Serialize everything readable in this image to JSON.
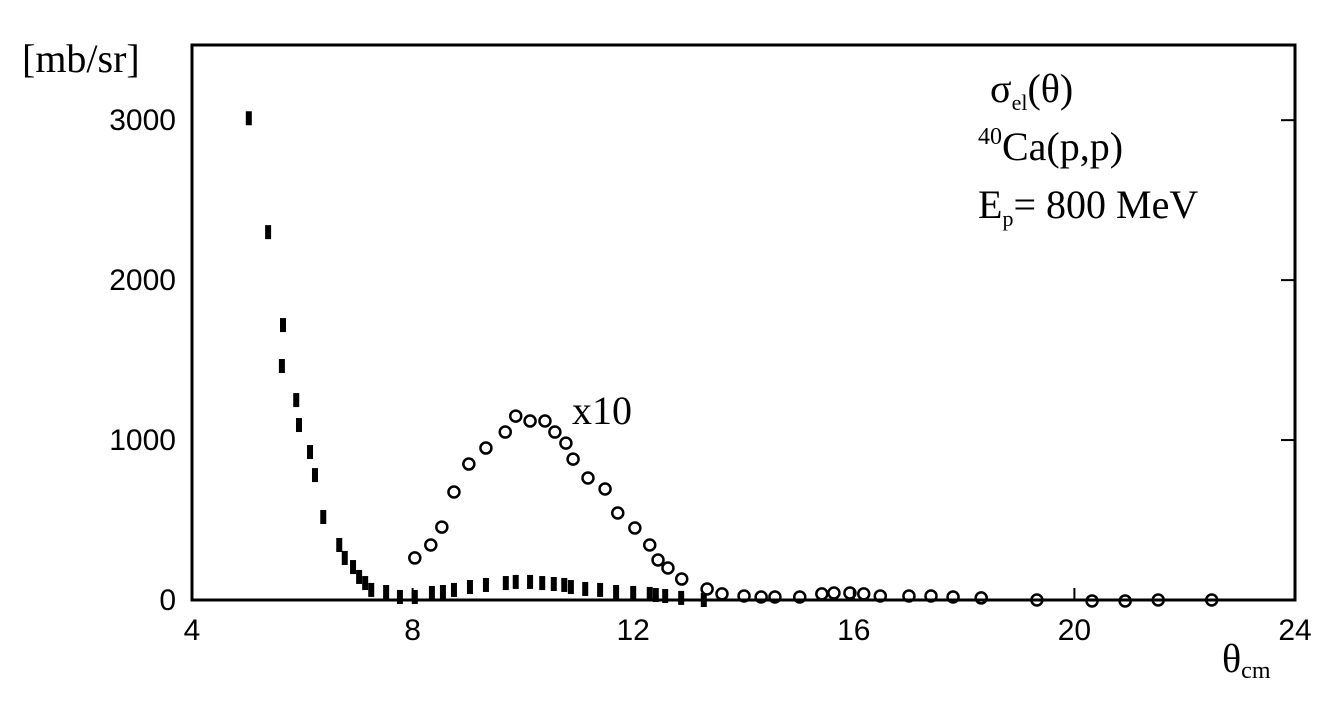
{
  "chart_data": {
    "type": "scatter",
    "y_label": "[mb/sr]",
    "x_label": {
      "main": "θ",
      "sub": "cm"
    },
    "annotations": [
      {
        "parts": [
          {
            "text": "σ",
            "style": "normal"
          },
          {
            "text": "el",
            "style": "sub"
          },
          {
            "text": "(θ)",
            "style": "normal"
          }
        ]
      },
      {
        "parts": [
          {
            "text": "40",
            "style": "sup"
          },
          {
            "text": "Ca(p,p)",
            "style": "normal"
          }
        ]
      },
      {
        "parts": [
          {
            "text": "E",
            "style": "normal"
          },
          {
            "text": "p",
            "style": "sub"
          },
          {
            "text": "= 800 MeV",
            "style": "normal"
          }
        ]
      },
      {
        "parts": [
          {
            "text": "x10",
            "style": "normal"
          }
        ]
      }
    ],
    "xlim": [
      4,
      24
    ],
    "xticks": [
      4,
      8,
      12,
      16,
      20,
      24
    ],
    "ylim": [
      0,
      3470
    ],
    "yticks": [
      0,
      1000,
      2000,
      3000
    ],
    "series": [
      {
        "color": "#000000",
        "marker": "bar",
        "x": [
          5.03,
          5.38,
          5.65,
          5.63,
          5.89,
          5.94,
          6.14,
          6.23,
          6.38,
          6.67,
          6.77,
          6.92,
          7.03,
          7.14,
          7.25,
          7.52,
          7.77,
          8.04,
          8.35,
          8.55,
          8.75,
          9.04,
          9.33,
          9.69,
          9.87,
          10.13,
          10.35,
          10.56,
          10.75,
          10.87,
          11.13,
          11.4,
          11.69,
          12.0,
          12.3,
          12.41,
          12.58,
          12.87,
          13.28
        ],
        "values": [
          3012,
          2300,
          1719,
          1463,
          1250,
          1094,
          925,
          781,
          519,
          344,
          263,
          206,
          144,
          106,
          63,
          50,
          19,
          19,
          44,
          50,
          63,
          81,
          94,
          106,
          113,
          113,
          106,
          100,
          94,
          81,
          69,
          63,
          50,
          44,
          38,
          31,
          25,
          13,
          0
        ]
      },
      {
        "color": "#000000",
        "marker": "circle",
        "x": [
          8.04,
          8.33,
          8.53,
          8.75,
          9.02,
          9.33,
          9.68,
          9.87,
          10.13,
          10.4,
          10.58,
          10.78,
          10.91,
          11.18,
          11.49,
          11.72,
          12.03,
          12.3,
          12.45,
          12.63,
          12.88,
          13.34,
          13.61,
          14.01,
          14.32,
          14.57,
          15.02,
          15.42,
          15.64,
          15.93,
          16.18,
          16.48,
          17.0,
          17.4,
          17.8,
          18.31,
          19.32,
          20.32,
          20.92,
          21.52,
          22.49
        ],
        "values": [
          263,
          344,
          456,
          675,
          850,
          950,
          1050,
          1150,
          1119,
          1119,
          1050,
          981,
          881,
          763,
          694,
          544,
          450,
          344,
          250,
          200,
          131,
          69,
          38,
          25,
          19,
          19,
          19,
          38,
          44,
          44,
          38,
          25,
          25,
          25,
          19,
          13,
          0,
          -6,
          -6,
          0,
          0
        ]
      }
    ]
  }
}
